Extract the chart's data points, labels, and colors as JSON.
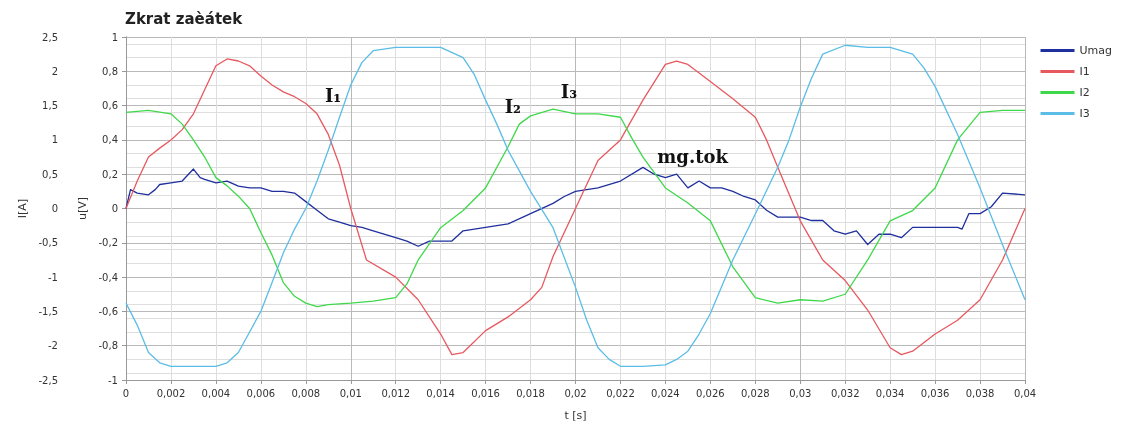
{
  "chart_data": {
    "type": "line",
    "title": "Zkrat zaèátek",
    "xlabel": "t [s]",
    "ylabel": "I[A]",
    "y2label": "u[V]",
    "xlim": [
      0,
      0.04
    ],
    "xticks": [
      0,
      {
        "value": 0.002,
        "label": "0,002"
      },
      {
        "value": 0.004,
        "label": "0,004"
      },
      {
        "value": 0.006,
        "label": "0,006"
      },
      {
        "value": 0.008,
        "label": "0,008"
      },
      {
        "value": 0.01,
        "label": "0,01"
      },
      {
        "value": 0.012,
        "label": "0,012"
      },
      {
        "value": 0.014,
        "label": "0,014"
      },
      {
        "value": 0.016,
        "label": "0,016"
      },
      {
        "value": 0.018,
        "label": "0,018"
      },
      {
        "value": 0.02,
        "label": "0,02"
      },
      {
        "value": 0.022,
        "label": "0,022"
      },
      {
        "value": 0.024,
        "label": "0,024"
      },
      {
        "value": 0.026,
        "label": "0,026"
      },
      {
        "value": 0.028,
        "label": "0,028"
      },
      {
        "value": 0.03,
        "label": "0,03"
      },
      {
        "value": 0.032,
        "label": "0,032"
      },
      {
        "value": 0.034,
        "label": "0,034"
      },
      {
        "value": 0.036,
        "label": "0,036"
      },
      {
        "value": 0.038,
        "label": "0,038"
      },
      {
        "value": 0.04,
        "label": "0,04"
      }
    ],
    "ylim": [
      -2.5,
      2.5
    ],
    "yticks": [
      {
        "value": -2.5,
        "label": "-2,5"
      },
      -2,
      {
        "value": -1.5,
        "label": "-1,5"
      },
      -1,
      {
        "value": -0.5,
        "label": "-0,5"
      },
      0,
      {
        "value": 0.5,
        "label": "0,5"
      },
      1,
      {
        "value": 1.5,
        "label": "1,5"
      },
      2,
      {
        "value": 2.5,
        "label": "2,5"
      }
    ],
    "y2lim": [
      -1,
      1
    ],
    "y2ticks": [
      -1,
      {
        "value": -0.8,
        "label": "-0,8"
      },
      {
        "value": -0.6,
        "label": "-0,6"
      },
      {
        "value": -0.4,
        "label": "-0,4"
      },
      {
        "value": -0.2,
        "label": "-0,2"
      },
      0,
      {
        "value": 0.2,
        "label": "0,2"
      },
      {
        "value": 0.4,
        "label": "0,4"
      },
      {
        "value": 0.6,
        "label": "0,6"
      },
      {
        "value": 0.8,
        "label": "0,8"
      },
      1
    ],
    "grid": true,
    "legend": "top right",
    "marker": "none",
    "line_style": "solid",
    "annotations": [
      {
        "text": "I₁",
        "x": 0.0085,
        "y": 1.38
      },
      {
        "text": "I₂",
        "x": 0.0165,
        "y": 1.23
      },
      {
        "text": "I₃",
        "x": 0.019,
        "y": 1.45
      },
      {
        "text": "mg.tok",
        "x": 0.0245,
        "y": 0.5
      }
    ],
    "series": [
      {
        "name": "Umag",
        "color": "#1f2f9e",
        "axis": "y2",
        "x": [
          0,
          0.0002,
          0.0005,
          0.001,
          0.0013,
          0.0015,
          0.002,
          0.0025,
          0.003,
          0.0033,
          0.0035,
          0.004,
          0.0045,
          0.005,
          0.0055,
          0.006,
          0.0065,
          0.007,
          0.0075,
          0.008,
          0.0085,
          0.009,
          0.0095,
          0.01,
          0.0105,
          0.011,
          0.012,
          0.0125,
          0.013,
          0.0135,
          0.014,
          0.0145,
          0.015,
          0.016,
          0.017,
          0.018,
          0.019,
          0.0195,
          0.02,
          0.021,
          0.022,
          0.023,
          0.0235,
          0.024,
          0.0245,
          0.025,
          0.0255,
          0.026,
          0.0265,
          0.027,
          0.0275,
          0.028,
          0.0285,
          0.029,
          0.03,
          0.0305,
          0.031,
          0.0315,
          0.032,
          0.0325,
          0.033,
          0.0335,
          0.034,
          0.0345,
          0.035,
          0.036,
          0.037,
          0.0372,
          0.0375,
          0.038,
          0.0385,
          0.039,
          0.04
        ],
        "values": [
          0,
          0.11,
          0.09,
          0.08,
          0.11,
          0.14,
          0.15,
          0.16,
          0.23,
          0.18,
          0.17,
          0.15,
          0.16,
          0.13,
          0.12,
          0.12,
          0.1,
          0.1,
          0.09,
          0.04,
          -0.01,
          -0.06,
          -0.08,
          -0.1,
          -0.11,
          -0.13,
          -0.17,
          -0.19,
          -0.22,
          -0.19,
          -0.19,
          -0.19,
          -0.13,
          -0.11,
          -0.09,
          -0.03,
          0.03,
          0.07,
          0.1,
          0.12,
          0.16,
          0.24,
          0.2,
          0.18,
          0.2,
          0.12,
          0.16,
          0.12,
          0.12,
          0.1,
          0.07,
          0.05,
          -0.01,
          -0.05,
          -0.05,
          -0.07,
          -0.07,
          -0.13,
          -0.15,
          -0.13,
          -0.21,
          -0.15,
          -0.15,
          -0.17,
          -0.11,
          -0.11,
          -0.11,
          -0.12,
          -0.03,
          -0.03,
          0.01,
          0.09,
          0.08
        ]
      },
      {
        "name": "I1",
        "color": "#e8595f",
        "x": [
          0,
          0.0005,
          0.001,
          0.0015,
          0.002,
          0.0025,
          0.003,
          0.0035,
          0.004,
          0.0045,
          0.005,
          0.0055,
          0.006,
          0.0065,
          0.007,
          0.0075,
          0.008,
          0.0085,
          0.009,
          0.0095,
          0.01,
          0.0107,
          0.012,
          0.013,
          0.014,
          0.0145,
          0.015,
          0.016,
          0.017,
          0.018,
          0.0185,
          0.019,
          0.02,
          0.021,
          0.022,
          0.023,
          0.024,
          0.0245,
          0.025,
          0.026,
          0.027,
          0.028,
          0.0285,
          0.029,
          0.03,
          0.031,
          0.032,
          0.033,
          0.034,
          0.0345,
          0.035,
          0.036,
          0.037,
          0.038,
          0.039,
          0.04
        ],
        "values": [
          0,
          0.4,
          0.75,
          0.88,
          1.0,
          1.15,
          1.38,
          1.73,
          2.08,
          2.18,
          2.15,
          2.08,
          1.93,
          1.8,
          1.7,
          1.63,
          1.53,
          1.38,
          1.08,
          0.63,
          0,
          -0.75,
          -1.0,
          -1.33,
          -1.83,
          -2.13,
          -2.1,
          -1.78,
          -1.58,
          -1.33,
          -1.15,
          -0.7,
          0,
          0.7,
          1.0,
          1.58,
          2.1,
          2.15,
          2.1,
          1.85,
          1.6,
          1.33,
          1.0,
          0.6,
          -0.18,
          -0.75,
          -1.05,
          -1.48,
          -2.03,
          -2.13,
          -2.08,
          -1.83,
          -1.63,
          -1.33,
          -0.75,
          0
        ]
      },
      {
        "name": "I2",
        "color": "#3fd84a",
        "x": [
          0,
          0.001,
          0.002,
          0.0025,
          0.003,
          0.0035,
          0.004,
          0.0045,
          0.005,
          0.0055,
          0.006,
          0.0065,
          0.007,
          0.0075,
          0.008,
          0.0085,
          0.009,
          0.01,
          0.011,
          0.012,
          0.0125,
          0.013,
          0.014,
          0.015,
          0.016,
          0.017,
          0.0175,
          0.018,
          0.019,
          0.02,
          0.021,
          0.022,
          0.0225,
          0.023,
          0.024,
          0.025,
          0.026,
          0.027,
          0.028,
          0.029,
          0.03,
          0.031,
          0.032,
          0.033,
          0.034,
          0.035,
          0.036,
          0.037,
          0.038,
          0.039,
          0.04
        ],
        "values": [
          1.4,
          1.43,
          1.38,
          1.23,
          1.0,
          0.75,
          0.45,
          0.33,
          0.18,
          0,
          -0.35,
          -0.68,
          -1.08,
          -1.28,
          -1.38,
          -1.43,
          -1.4,
          -1.38,
          -1.35,
          -1.3,
          -1.1,
          -0.75,
          -0.28,
          -0.03,
          0.3,
          0.9,
          1.23,
          1.35,
          1.45,
          1.38,
          1.38,
          1.33,
          1.03,
          0.75,
          0.3,
          0.08,
          -0.18,
          -0.85,
          -1.3,
          -1.38,
          -1.33,
          -1.35,
          -1.25,
          -0.75,
          -0.18,
          -0.03,
          0.3,
          1.0,
          1.4,
          1.43,
          1.43
        ]
      },
      {
        "name": "I3",
        "color": "#5bbde6",
        "x": [
          0,
          0.0005,
          0.001,
          0.0015,
          0.002,
          0.003,
          0.004,
          0.0045,
          0.005,
          0.0055,
          0.006,
          0.0065,
          0.007,
          0.0075,
          0.008,
          0.0085,
          0.009,
          0.0095,
          0.01,
          0.0105,
          0.011,
          0.012,
          0.013,
          0.014,
          0.015,
          0.0155,
          0.016,
          0.0165,
          0.017,
          0.018,
          0.019,
          0.02,
          0.0205,
          0.021,
          0.0215,
          0.022,
          0.023,
          0.024,
          0.0245,
          0.025,
          0.0255,
          0.026,
          0.027,
          0.028,
          0.029,
          0.0295,
          0.03,
          0.0305,
          0.031,
          0.032,
          0.033,
          0.034,
          0.035,
          0.0355,
          0.036,
          0.037,
          0.038,
          0.039,
          0.04
        ],
        "values": [
          -1.38,
          -1.7,
          -2.1,
          -2.25,
          -2.3,
          -2.3,
          -2.3,
          -2.25,
          -2.1,
          -1.8,
          -1.5,
          -1.08,
          -0.65,
          -0.3,
          0,
          0.4,
          0.85,
          1.33,
          1.8,
          2.13,
          2.3,
          2.35,
          2.35,
          2.35,
          2.2,
          1.95,
          1.58,
          1.23,
          0.85,
          0.25,
          -0.28,
          -1.15,
          -1.63,
          -2.03,
          -2.2,
          -2.3,
          -2.3,
          -2.28,
          -2.2,
          -2.08,
          -1.83,
          -1.53,
          -0.75,
          -0.08,
          0.6,
          1.0,
          1.48,
          1.9,
          2.25,
          2.38,
          2.35,
          2.35,
          2.25,
          2.05,
          1.78,
          1.08,
          0.3,
          -0.53,
          -1.33
        ]
      }
    ]
  }
}
